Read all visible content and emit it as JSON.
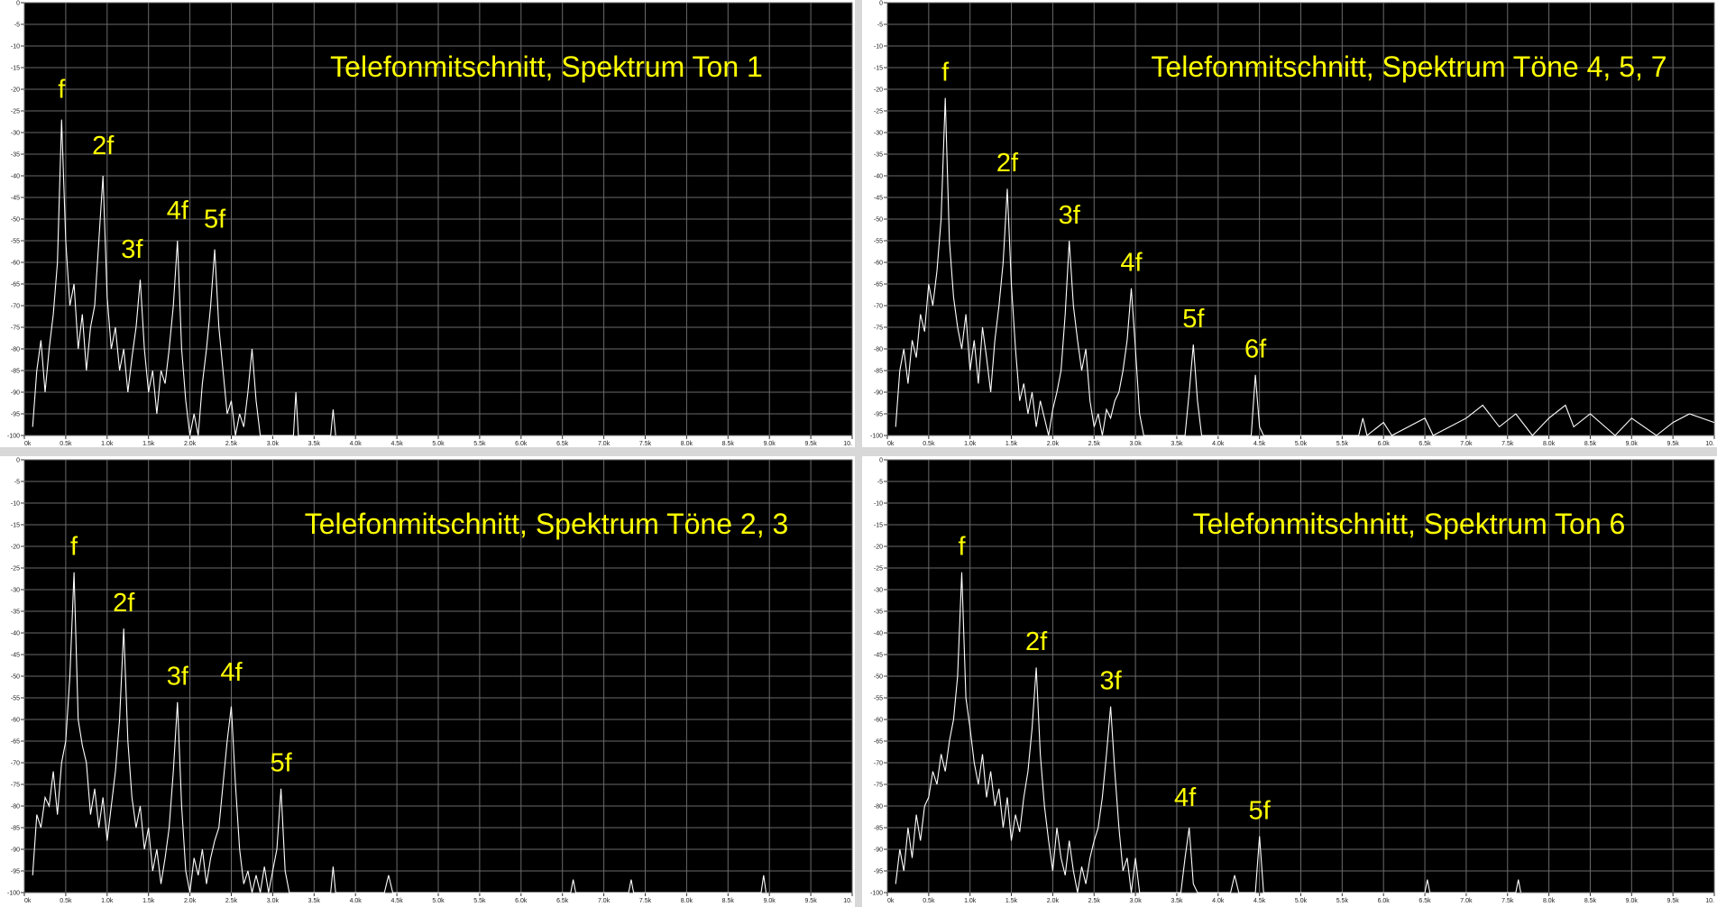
{
  "chart_data": [
    {
      "type": "line",
      "title": "Telefonmitschnitt, Spektrum Ton 1",
      "color": "#ffffff",
      "grid": true,
      "xlim": [
        0,
        10
      ],
      "ylim": [
        -100,
        0
      ],
      "xticks": [
        {
          "value": 0,
          "label": "0k"
        },
        {
          "value": 0.5,
          "label": "0.5k"
        },
        {
          "value": 1,
          "label": "1.0k"
        },
        {
          "value": 1.5,
          "label": "1.5k"
        },
        {
          "value": 2,
          "label": "2.0k"
        },
        {
          "value": 2.5,
          "label": "2.5k"
        },
        {
          "value": 3,
          "label": "3.0k"
        },
        {
          "value": 3.5,
          "label": "3.5k"
        },
        {
          "value": 4,
          "label": "4.0k"
        },
        {
          "value": 4.5,
          "label": "4.5k"
        },
        {
          "value": 5,
          "label": "5.0k"
        },
        {
          "value": 5.5,
          "label": "5.5k"
        },
        {
          "value": 6,
          "label": "6.0k"
        },
        {
          "value": 6.5,
          "label": "6.5k"
        },
        {
          "value": 7,
          "label": "7.0k"
        },
        {
          "value": 7.5,
          "label": "7.5k"
        },
        {
          "value": 8,
          "label": "8.0k"
        },
        {
          "value": 8.5,
          "label": "8.5k"
        },
        {
          "value": 9,
          "label": "9.0k"
        },
        {
          "value": 9.5,
          "label": "9.5k"
        },
        {
          "value": 10,
          "label": "10."
        }
      ],
      "yticks": [
        0,
        -5,
        -10,
        -15,
        -20,
        -25,
        -30,
        -35,
        -40,
        -45,
        -50,
        -55,
        -60,
        -65,
        -70,
        -75,
        -80,
        -85,
        -90,
        -95,
        -100
      ],
      "x": [
        0.1,
        0.15,
        0.2,
        0.25,
        0.3,
        0.35,
        0.4,
        0.45,
        0.5,
        0.55,
        0.6,
        0.65,
        0.7,
        0.75,
        0.8,
        0.85,
        0.9,
        0.95,
        1.0,
        1.05,
        1.1,
        1.15,
        1.2,
        1.25,
        1.3,
        1.35,
        1.4,
        1.45,
        1.5,
        1.55,
        1.6,
        1.65,
        1.7,
        1.75,
        1.8,
        1.85,
        1.9,
        1.95,
        2.0,
        2.05,
        2.1,
        2.15,
        2.2,
        2.25,
        2.3,
        2.35,
        2.4,
        2.45,
        2.5,
        2.55,
        2.6,
        2.65,
        2.7,
        2.75,
        2.8,
        2.85,
        2.9,
        3.0,
        3.25,
        3.28,
        3.31,
        3.7,
        3.73,
        3.76
      ],
      "values": [
        -98,
        -85,
        -78,
        -90,
        -80,
        -72,
        -60,
        -27,
        -55,
        -70,
        -65,
        -80,
        -72,
        -85,
        -75,
        -70,
        -55,
        -40,
        -68,
        -80,
        -75,
        -85,
        -80,
        -90,
        -82,
        -75,
        -64,
        -80,
        -90,
        -85,
        -95,
        -85,
        -88,
        -80,
        -70,
        -55,
        -80,
        -92,
        -100,
        -95,
        -100,
        -88,
        -80,
        -70,
        -57,
        -75,
        -85,
        -95,
        -92,
        -100,
        -95,
        -98,
        -90,
        -80,
        -92,
        -100,
        -100,
        -100,
        -100,
        -90,
        -100,
        -100,
        -94,
        -100
      ],
      "annotations": [
        {
          "text": "f",
          "x": 0.45,
          "y": -22
        },
        {
          "text": "2f",
          "x": 0.95,
          "y": -35
        },
        {
          "text": "3f",
          "x": 1.3,
          "y": -59
        },
        {
          "text": "4f",
          "x": 1.85,
          "y": -50
        },
        {
          "text": "5f",
          "x": 2.3,
          "y": -52
        }
      ]
    },
    {
      "type": "line",
      "title": "Telefonmitschnitt, Spektrum Töne 4, 5, 7",
      "color": "#ffffff",
      "grid": true,
      "xlim": [
        0,
        10
      ],
      "ylim": [
        -100,
        0
      ],
      "xticks": [
        {
          "value": 0,
          "label": "0k"
        },
        {
          "value": 0.5,
          "label": "0.5k"
        },
        {
          "value": 1,
          "label": "1.0k"
        },
        {
          "value": 1.5,
          "label": "1.5k"
        },
        {
          "value": 2,
          "label": "2.0k"
        },
        {
          "value": 2.5,
          "label": "2.5k"
        },
        {
          "value": 3,
          "label": "3.0k"
        },
        {
          "value": 3.5,
          "label": "3.5k"
        },
        {
          "value": 4,
          "label": "4.0k"
        },
        {
          "value": 4.5,
          "label": "4.5k"
        },
        {
          "value": 5,
          "label": "5.0k"
        },
        {
          "value": 5.5,
          "label": "5.5k"
        },
        {
          "value": 6,
          "label": "6.0k"
        },
        {
          "value": 6.5,
          "label": "6.5k"
        },
        {
          "value": 7,
          "label": "7.0k"
        },
        {
          "value": 7.5,
          "label": "7.5k"
        },
        {
          "value": 8,
          "label": "8.0k"
        },
        {
          "value": 8.5,
          "label": "8.5k"
        },
        {
          "value": 9,
          "label": "9.0k"
        },
        {
          "value": 9.5,
          "label": "9.5k"
        },
        {
          "value": 10,
          "label": "10."
        }
      ],
      "yticks": [
        0,
        -5,
        -10,
        -15,
        -20,
        -25,
        -30,
        -35,
        -40,
        -45,
        -50,
        -55,
        -60,
        -65,
        -70,
        -75,
        -80,
        -85,
        -90,
        -95,
        -100
      ],
      "x": [
        0.1,
        0.15,
        0.2,
        0.25,
        0.3,
        0.35,
        0.4,
        0.45,
        0.5,
        0.55,
        0.6,
        0.65,
        0.7,
        0.75,
        0.8,
        0.85,
        0.9,
        0.95,
        1.0,
        1.05,
        1.1,
        1.15,
        1.2,
        1.25,
        1.3,
        1.35,
        1.4,
        1.45,
        1.5,
        1.55,
        1.6,
        1.65,
        1.7,
        1.75,
        1.8,
        1.85,
        1.9,
        1.95,
        2.0,
        2.05,
        2.1,
        2.15,
        2.2,
        2.25,
        2.3,
        2.35,
        2.4,
        2.45,
        2.5,
        2.55,
        2.6,
        2.65,
        2.7,
        2.75,
        2.8,
        2.85,
        2.9,
        2.95,
        3.0,
        3.05,
        3.1,
        3.6,
        3.65,
        3.7,
        3.75,
        3.8,
        4.4,
        4.45,
        4.5,
        4.55,
        5.7,
        5.75,
        5.8,
        6.0,
        6.1,
        6.5,
        6.6,
        7.0,
        7.2,
        7.4,
        7.6,
        7.8,
        8.0,
        8.2,
        8.3,
        8.5,
        8.8,
        9.0,
        9.3,
        9.5,
        9.7,
        10
      ],
      "values": [
        -98,
        -85,
        -80,
        -88,
        -78,
        -82,
        -72,
        -76,
        -65,
        -70,
        -62,
        -50,
        -22,
        -55,
        -68,
        -75,
        -80,
        -72,
        -85,
        -78,
        -88,
        -75,
        -82,
        -90,
        -78,
        -70,
        -60,
        -43,
        -65,
        -80,
        -92,
        -88,
        -95,
        -90,
        -98,
        -92,
        -96,
        -100,
        -94,
        -90,
        -85,
        -72,
        -55,
        -70,
        -78,
        -85,
        -80,
        -92,
        -98,
        -95,
        -100,
        -94,
        -96,
        -92,
        -90,
        -85,
        -78,
        -66,
        -80,
        -95,
        -100,
        -100,
        -90,
        -79,
        -92,
        -100,
        -100,
        -86,
        -98,
        -100,
        -100,
        -96,
        -100,
        -97,
        -100,
        -96,
        -100,
        -96,
        -93,
        -98,
        -95,
        -100,
        -96,
        -93,
        -98,
        -95,
        -100,
        -96,
        -100,
        -97,
        -95,
        -97
      ],
      "annotations": [
        {
          "text": "f",
          "x": 0.7,
          "y": -18
        },
        {
          "text": "2f",
          "x": 1.45,
          "y": -39
        },
        {
          "text": "3f",
          "x": 2.2,
          "y": -51
        },
        {
          "text": "4f",
          "x": 2.95,
          "y": -62
        },
        {
          "text": "5f",
          "x": 3.7,
          "y": -75
        },
        {
          "text": "6f",
          "x": 4.45,
          "y": -82
        }
      ]
    },
    {
      "type": "line",
      "title": "Telefonmitschnitt, Spektrum Töne 2, 3",
      "color": "#ffffff",
      "grid": true,
      "xlim": [
        0,
        10
      ],
      "ylim": [
        -100,
        0
      ],
      "xticks": [
        {
          "value": 0,
          "label": "0k"
        },
        {
          "value": 0.5,
          "label": "0.5k"
        },
        {
          "value": 1,
          "label": "1.0k"
        },
        {
          "value": 1.5,
          "label": "1.5k"
        },
        {
          "value": 2,
          "label": "2.0k"
        },
        {
          "value": 2.5,
          "label": "2.5k"
        },
        {
          "value": 3,
          "label": "3.0k"
        },
        {
          "value": 3.5,
          "label": "3.5k"
        },
        {
          "value": 4,
          "label": "4.0k"
        },
        {
          "value": 4.5,
          "label": "4.5k"
        },
        {
          "value": 5,
          "label": "5.0k"
        },
        {
          "value": 5.5,
          "label": "5.5k"
        },
        {
          "value": 6,
          "label": "6.0k"
        },
        {
          "value": 6.5,
          "label": "6.5k"
        },
        {
          "value": 7,
          "label": "7.0k"
        },
        {
          "value": 7.5,
          "label": "7.5k"
        },
        {
          "value": 8,
          "label": "8.0k"
        },
        {
          "value": 8.5,
          "label": "8.5k"
        },
        {
          "value": 9,
          "label": "9.0k"
        },
        {
          "value": 9.5,
          "label": "9.5k"
        },
        {
          "value": 10,
          "label": "10."
        }
      ],
      "yticks": [
        0,
        -5,
        -10,
        -15,
        -20,
        -25,
        -30,
        -35,
        -40,
        -45,
        -50,
        -55,
        -60,
        -65,
        -70,
        -75,
        -80,
        -85,
        -90,
        -95,
        -100
      ],
      "x": [
        0.1,
        0.15,
        0.2,
        0.25,
        0.3,
        0.35,
        0.4,
        0.45,
        0.5,
        0.55,
        0.6,
        0.65,
        0.7,
        0.75,
        0.8,
        0.85,
        0.9,
        0.95,
        1.0,
        1.05,
        1.1,
        1.15,
        1.2,
        1.25,
        1.3,
        1.35,
        1.4,
        1.45,
        1.5,
        1.55,
        1.6,
        1.65,
        1.7,
        1.75,
        1.8,
        1.85,
        1.9,
        1.95,
        2.0,
        2.05,
        2.1,
        2.15,
        2.2,
        2.25,
        2.3,
        2.35,
        2.4,
        2.45,
        2.5,
        2.55,
        2.6,
        2.65,
        2.7,
        2.75,
        2.8,
        2.85,
        2.9,
        2.95,
        3.05,
        3.1,
        3.15,
        3.2,
        3.7,
        3.73,
        3.76,
        4.35,
        4.4,
        4.45,
        6.6,
        6.63,
        6.66,
        7.3,
        7.33,
        7.36,
        8.9,
        8.93,
        8.96
      ],
      "values": [
        -96,
        -82,
        -85,
        -78,
        -80,
        -72,
        -82,
        -70,
        -65,
        -50,
        -26,
        -60,
        -66,
        -70,
        -82,
        -76,
        -85,
        -78,
        -88,
        -80,
        -72,
        -60,
        -39,
        -65,
        -78,
        -85,
        -80,
        -90,
        -85,
        -95,
        -90,
        -98,
        -92,
        -85,
        -72,
        -56,
        -80,
        -95,
        -100,
        -92,
        -96,
        -90,
        -98,
        -92,
        -88,
        -85,
        -75,
        -65,
        -57,
        -75,
        -90,
        -98,
        -95,
        -100,
        -96,
        -100,
        -94,
        -100,
        -90,
        -76,
        -95,
        -100,
        -100,
        -94,
        -100,
        -100,
        -96,
        -100,
        -100,
        -97,
        -100,
        -100,
        -97,
        -100,
        -100,
        -96,
        -100
      ],
      "annotations": [
        {
          "text": "f",
          "x": 0.6,
          "y": -22
        },
        {
          "text": "2f",
          "x": 1.2,
          "y": -35
        },
        {
          "text": "3f",
          "x": 1.85,
          "y": -52
        },
        {
          "text": "4f",
          "x": 2.5,
          "y": -51
        },
        {
          "text": "5f",
          "x": 3.1,
          "y": -72
        }
      ]
    },
    {
      "type": "line",
      "title": "Telefonmitschnitt, Spektrum Ton 6",
      "color": "#ffffff",
      "grid": true,
      "xlim": [
        0,
        10
      ],
      "ylim": [
        -100,
        0
      ],
      "xticks": [
        {
          "value": 0,
          "label": "0k"
        },
        {
          "value": 0.5,
          "label": "0.5k"
        },
        {
          "value": 1,
          "label": "1.0k"
        },
        {
          "value": 1.5,
          "label": "1.5k"
        },
        {
          "value": 2,
          "label": "2.0k"
        },
        {
          "value": 2.5,
          "label": "2.5k"
        },
        {
          "value": 3,
          "label": "3.0k"
        },
        {
          "value": 3.5,
          "label": "3.5k"
        },
        {
          "value": 4,
          "label": "4.0k"
        },
        {
          "value": 4.5,
          "label": "4.5k"
        },
        {
          "value": 5,
          "label": "5.0k"
        },
        {
          "value": 5.5,
          "label": "5.5k"
        },
        {
          "value": 6,
          "label": "6.0k"
        },
        {
          "value": 6.5,
          "label": "6.5k"
        },
        {
          "value": 7,
          "label": "7.0k"
        },
        {
          "value": 7.5,
          "label": "7.5k"
        },
        {
          "value": 8,
          "label": "8.0k"
        },
        {
          "value": 8.5,
          "label": "8.5k"
        },
        {
          "value": 9,
          "label": "9.0k"
        },
        {
          "value": 9.5,
          "label": "9.5k"
        },
        {
          "value": 10,
          "label": "10."
        }
      ],
      "yticks": [
        0,
        -5,
        -10,
        -15,
        -20,
        -25,
        -30,
        -35,
        -40,
        -45,
        -50,
        -55,
        -60,
        -65,
        -70,
        -75,
        -80,
        -85,
        -90,
        -95,
        -100
      ],
      "x": [
        0.1,
        0.15,
        0.2,
        0.25,
        0.3,
        0.35,
        0.4,
        0.45,
        0.5,
        0.55,
        0.6,
        0.65,
        0.7,
        0.75,
        0.8,
        0.85,
        0.9,
        0.95,
        1.0,
        1.05,
        1.1,
        1.15,
        1.2,
        1.25,
        1.3,
        1.35,
        1.4,
        1.45,
        1.5,
        1.55,
        1.6,
        1.65,
        1.7,
        1.75,
        1.8,
        1.85,
        1.9,
        1.95,
        2.0,
        2.05,
        2.1,
        2.15,
        2.2,
        2.25,
        2.3,
        2.35,
        2.4,
        2.45,
        2.5,
        2.55,
        2.6,
        2.65,
        2.7,
        2.75,
        2.8,
        2.85,
        2.9,
        2.95,
        3.0,
        3.05,
        3.55,
        3.6,
        3.65,
        3.7,
        3.75,
        4.15,
        4.2,
        4.25,
        4.45,
        4.5,
        4.55,
        6.5,
        6.53,
        6.56,
        7.6,
        7.63,
        7.66
      ],
      "values": [
        -98,
        -90,
        -95,
        -85,
        -92,
        -82,
        -88,
        -80,
        -78,
        -72,
        -75,
        -68,
        -72,
        -65,
        -60,
        -50,
        -26,
        -55,
        -62,
        -70,
        -75,
        -68,
        -78,
        -72,
        -80,
        -76,
        -85,
        -78,
        -88,
        -82,
        -86,
        -78,
        -72,
        -62,
        -48,
        -68,
        -80,
        -88,
        -95,
        -85,
        -92,
        -96,
        -88,
        -95,
        -100,
        -94,
        -98,
        -92,
        -88,
        -85,
        -78,
        -68,
        -57,
        -72,
        -85,
        -95,
        -92,
        -100,
        -92,
        -100,
        -100,
        -92,
        -85,
        -98,
        -100,
        -100,
        -96,
        -100,
        -100,
        -87,
        -100,
        -100,
        -97,
        -100,
        -100,
        -97,
        -100
      ],
      "annotations": [
        {
          "text": "f",
          "x": 0.9,
          "y": -22
        },
        {
          "text": "2f",
          "x": 1.8,
          "y": -44
        },
        {
          "text": "3f",
          "x": 2.7,
          "y": -53
        },
        {
          "text": "4f",
          "x": 3.6,
          "y": -80
        },
        {
          "text": "5f",
          "x": 4.5,
          "y": -83
        }
      ]
    }
  ]
}
